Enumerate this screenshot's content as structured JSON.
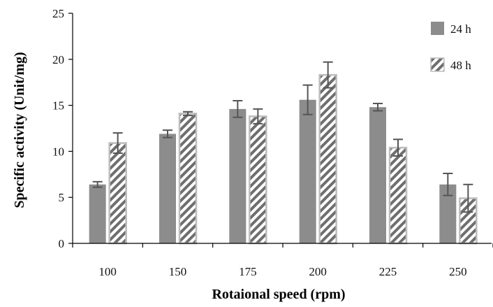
{
  "chart_data": {
    "type": "bar",
    "xlabel": "Rotaional speed (rpm)",
    "ylabel": "Specific activity (Unit/mg)",
    "categories": [
      "100",
      "150",
      "175",
      "200",
      "225",
      "250"
    ],
    "ylim": [
      0,
      25
    ],
    "yticks": [
      "0",
      "5",
      "10",
      "15",
      "20",
      "25"
    ],
    "grid": false,
    "legend_position": "top-right",
    "series": [
      {
        "name": "24 h",
        "values": [
          6.4,
          11.9,
          14.6,
          15.6,
          14.8,
          6.4
        ],
        "errors": [
          0.3,
          0.4,
          0.9,
          1.6,
          0.4,
          1.2
        ],
        "pattern": "solid",
        "color": "#8c8c8c"
      },
      {
        "name": "48 h",
        "values": [
          10.9,
          14.1,
          13.8,
          18.3,
          10.4,
          4.9
        ],
        "errors": [
          1.1,
          0.2,
          0.8,
          1.4,
          0.9,
          1.5
        ],
        "pattern": "diagonal-hatch",
        "color": "#8c8c8c"
      }
    ]
  }
}
